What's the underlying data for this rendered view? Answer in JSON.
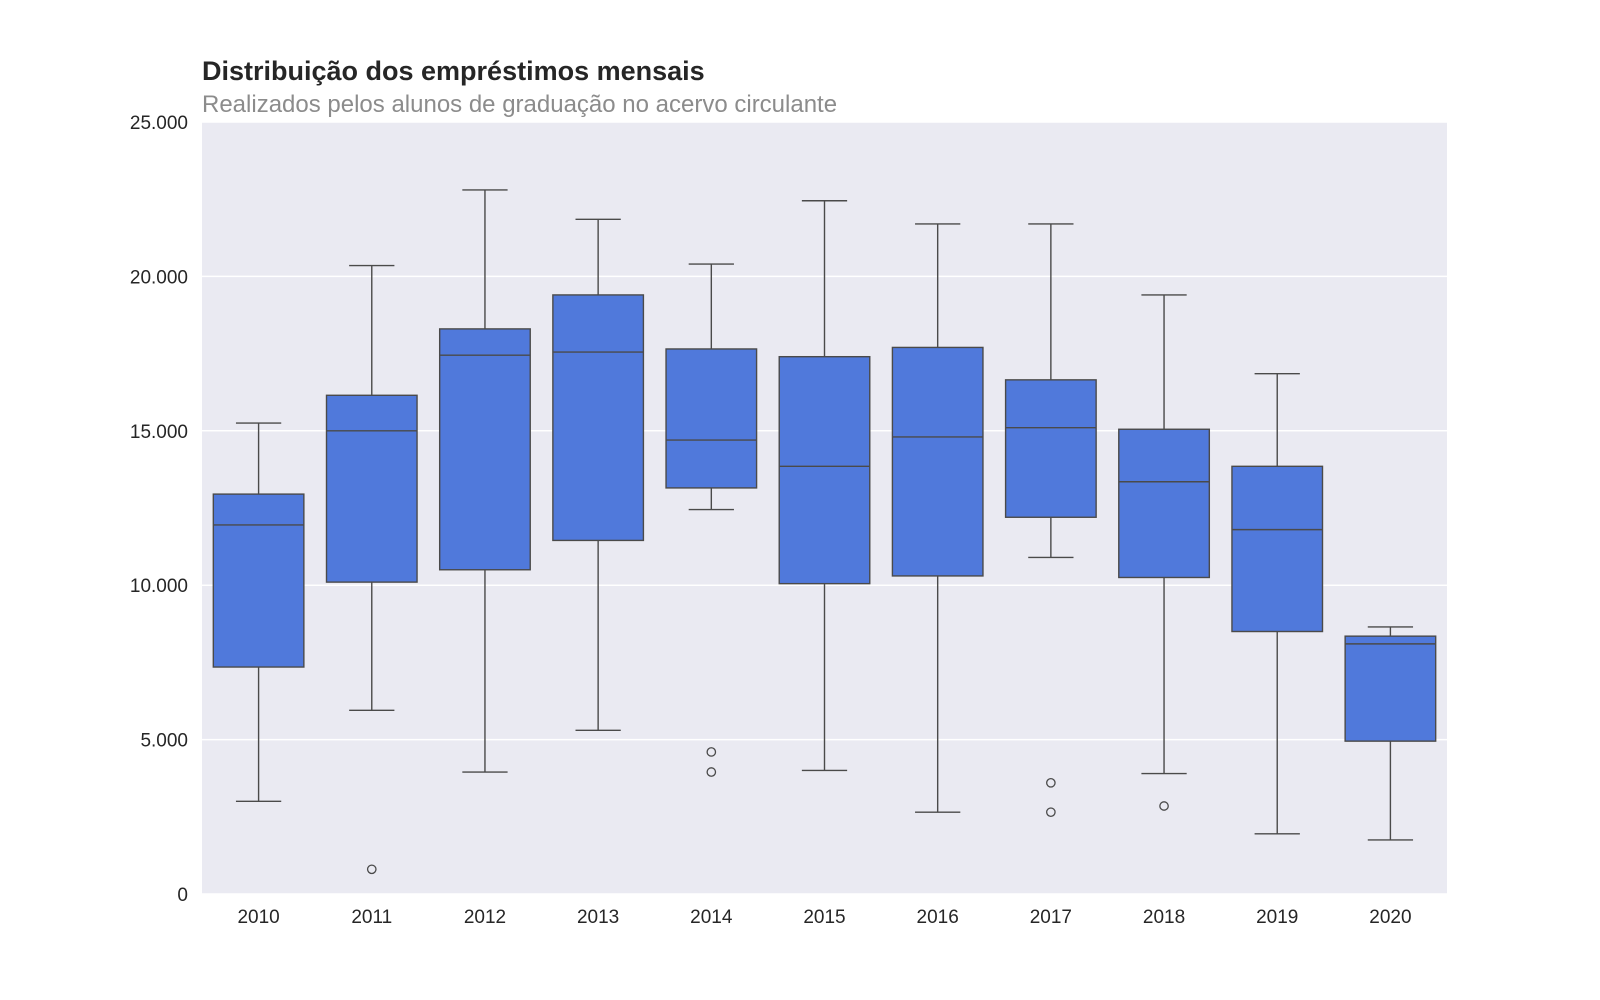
{
  "chart_data": {
    "type": "box",
    "title": "Distribuição dos empréstimos mensais",
    "subtitle": "Realizados pelos alunos de graduação no acervo circulante",
    "xlabel": "",
    "ylabel": "",
    "ylim": [
      0,
      25000
    ],
    "y_ticks": [
      0,
      5000,
      10000,
      15000,
      20000,
      25000
    ],
    "y_tick_labels": [
      "0",
      "5.000",
      "10.000",
      "15.000",
      "20.000",
      "25.000"
    ],
    "grid": "horizontal",
    "background_color": "#eaeaf2",
    "box_color": "#5079db",
    "line_color": "#4a4a4a",
    "categories": [
      "2010",
      "2011",
      "2012",
      "2013",
      "2014",
      "2015",
      "2016",
      "2017",
      "2018",
      "2019",
      "2020"
    ],
    "boxes": [
      {
        "x": "2010",
        "whisker_low": 3000,
        "q1": 7350,
        "median": 11950,
        "q3": 12950,
        "whisker_high": 15250,
        "outliers": []
      },
      {
        "x": "2011",
        "whisker_low": 5950,
        "q1": 10100,
        "median": 15000,
        "q3": 16150,
        "whisker_high": 20350,
        "outliers": [
          800
        ]
      },
      {
        "x": "2012",
        "whisker_low": 3950,
        "q1": 10500,
        "median": 17450,
        "q3": 18300,
        "whisker_high": 22800,
        "outliers": []
      },
      {
        "x": "2013",
        "whisker_low": 5300,
        "q1": 11450,
        "median": 17550,
        "q3": 19400,
        "whisker_high": 21850,
        "outliers": []
      },
      {
        "x": "2014",
        "whisker_low": 12450,
        "q1": 13150,
        "median": 14700,
        "q3": 17650,
        "whisker_high": 20400,
        "outliers": [
          4600,
          3950
        ]
      },
      {
        "x": "2015",
        "whisker_low": 4000,
        "q1": 10050,
        "median": 13850,
        "q3": 17400,
        "whisker_high": 22450,
        "outliers": []
      },
      {
        "x": "2016",
        "whisker_low": 2650,
        "q1": 10300,
        "median": 14800,
        "q3": 17700,
        "whisker_high": 21700,
        "outliers": []
      },
      {
        "x": "2017",
        "whisker_low": 10900,
        "q1": 12200,
        "median": 15100,
        "q3": 16650,
        "whisker_high": 21700,
        "outliers": [
          3600,
          2650
        ]
      },
      {
        "x": "2018",
        "whisker_low": 3900,
        "q1": 10250,
        "median": 13350,
        "q3": 15050,
        "whisker_high": 19400,
        "outliers": [
          2850
        ]
      },
      {
        "x": "2019",
        "whisker_low": 1950,
        "q1": 8500,
        "median": 11800,
        "q3": 13850,
        "whisker_high": 16850,
        "outliers": []
      },
      {
        "x": "2020",
        "whisker_low": 1750,
        "q1": 4950,
        "median": 8100,
        "q3": 8350,
        "whisker_high": 8650,
        "outliers": []
      }
    ]
  }
}
